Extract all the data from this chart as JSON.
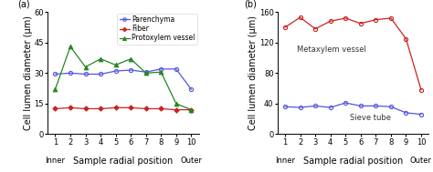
{
  "x": [
    1,
    2,
    3,
    4,
    5,
    6,
    7,
    8,
    9,
    10
  ],
  "panel_a": {
    "parenchyma": [
      29.5,
      30.0,
      29.5,
      29.5,
      31.0,
      31.5,
      30.5,
      32.0,
      32.0,
      22.0
    ],
    "fiber": [
      12.5,
      13.0,
      12.5,
      12.5,
      13.0,
      13.0,
      12.5,
      12.5,
      12.0,
      12.0
    ],
    "protoxylem": [
      22.0,
      43.0,
      33.0,
      37.0,
      34.0,
      37.0,
      30.0,
      30.5,
      15.0,
      12.0
    ],
    "ylim": [
      0,
      60
    ],
    "yticks": [
      0,
      15,
      30,
      45,
      60
    ],
    "ylabel": "Cell lumen diameter (μm)",
    "xlabel": "Sample radial position",
    "title": "(a)",
    "legend_labels": [
      "Parenchyma",
      "Fiber",
      "Protoxylem vessel"
    ]
  },
  "panel_b": {
    "metaxylem_x": [
      1,
      2,
      3,
      4,
      5,
      6,
      7,
      8,
      9,
      10
    ],
    "metaxylem_y": [
      140,
      153,
      138,
      148,
      152,
      145,
      150,
      152,
      125,
      58
    ],
    "sieve_x": [
      1,
      2,
      3,
      4,
      5,
      6,
      7,
      8,
      9,
      10
    ],
    "sieve_y": [
      36,
      35,
      37,
      35,
      41,
      37,
      37,
      36,
      28,
      26
    ],
    "ylim": [
      0,
      160
    ],
    "yticks": [
      0,
      40,
      80,
      120,
      160
    ],
    "ylabel": "Cell lumen diameter (μm)",
    "xlabel": "Sample radial position",
    "title": "(b)",
    "metaxylem_label": "Metaxylem vessel",
    "sieve_tube_label": "Sieve tube"
  },
  "font_size": 6.5,
  "label_font_size": 7.0,
  "tick_font_size": 6.0
}
